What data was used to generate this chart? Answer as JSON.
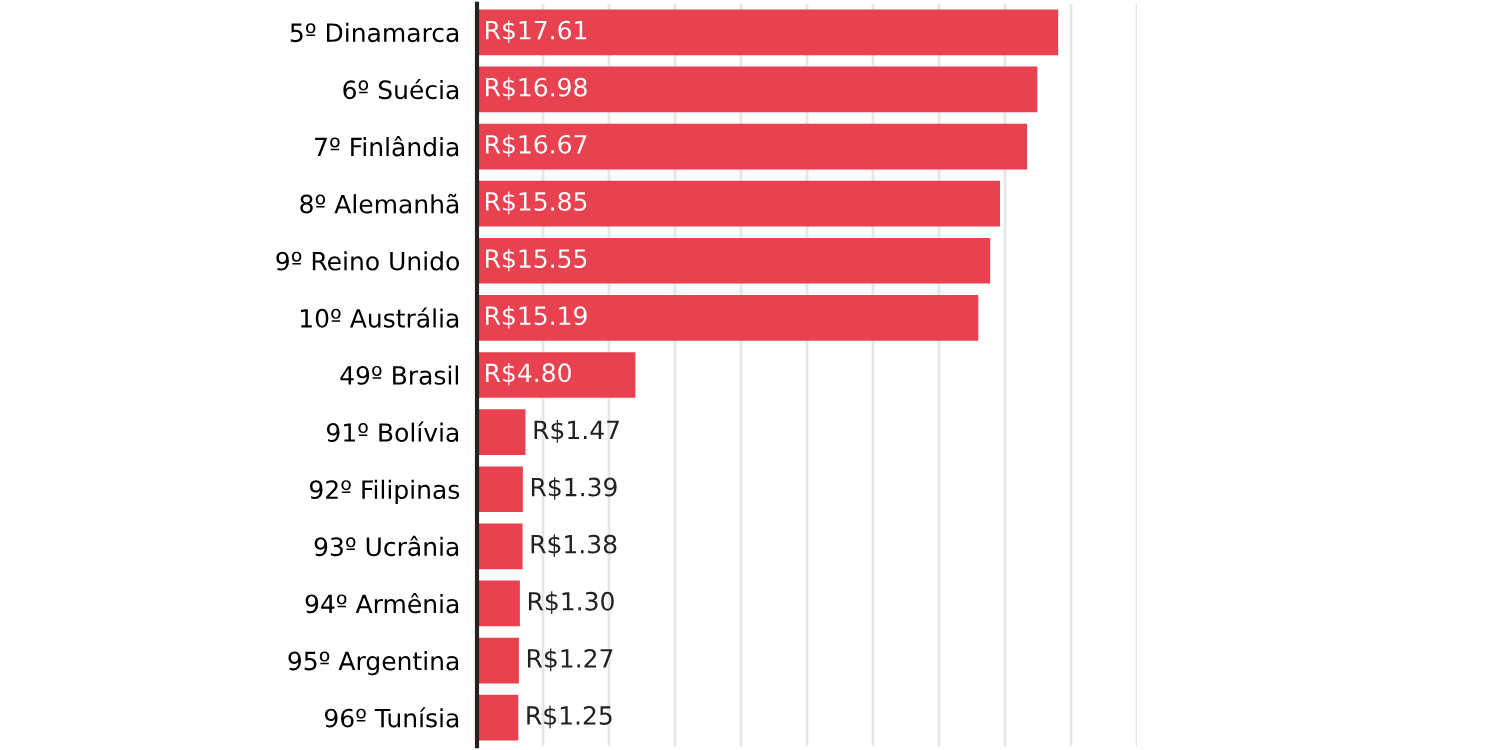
{
  "chart_data": {
    "type": "bar",
    "orientation": "horizontal",
    "categories": [
      "5º Dinamarca",
      "6º Suécia",
      "7º Finlândia",
      "8º Alemanhã",
      "9º Reino Unido",
      "10º Austrália",
      "49º Brasil",
      "91º Bolívia",
      "92º Filipinas",
      "93º Ucrânia",
      "94º Armênia",
      "95º Argentina",
      "96º Tunísia"
    ],
    "values": [
      17.61,
      16.98,
      16.67,
      15.85,
      15.55,
      15.19,
      4.8,
      1.47,
      1.39,
      1.38,
      1.3,
      1.27,
      1.25
    ],
    "value_labels": [
      "R$17.61",
      "R$16.98",
      "R$16.67",
      "R$15.85",
      "R$15.55",
      "R$15.19",
      "R$4.80",
      "R$1.47",
      "R$1.39",
      "R$1.38",
      "R$1.30",
      "R$1.27",
      "R$1.25"
    ],
    "color": "#e8414f",
    "xlim": [
      0,
      20
    ],
    "xticks": [
      {
        "value": 2,
        "label": null
      },
      {
        "value": 4,
        "label": null
      },
      {
        "value": 6,
        "label": null
      },
      {
        "value": 8,
        "label": null
      },
      {
        "value": 10,
        "label": null
      },
      {
        "value": 12,
        "label": null
      },
      {
        "value": 14,
        "label": null
      },
      {
        "value": 16,
        "label": null
      },
      {
        "value": 18,
        "label": null
      },
      {
        "value": 20,
        "label": null
      }
    ],
    "grid": "x",
    "tick_labels": "y"
  }
}
